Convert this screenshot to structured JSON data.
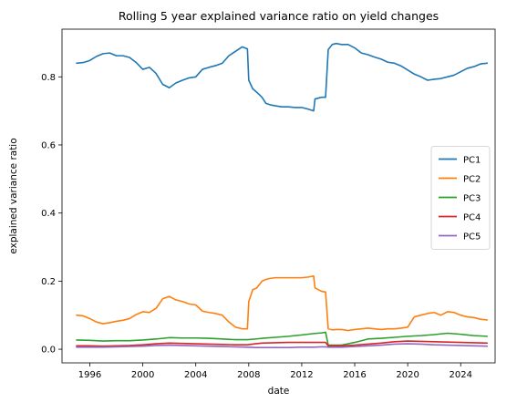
{
  "chart_data": {
    "type": "line",
    "title": "Rolling 5 year explained variance ratio on yield changes",
    "xlabel": "date",
    "ylabel": "explained variance ratio",
    "xlim": [
      1993.9,
      2026.6
    ],
    "ylim": [
      -0.04,
      0.94
    ],
    "xticks": [
      1996,
      2000,
      2004,
      2008,
      2012,
      2016,
      2020,
      2024
    ],
    "xtick_labels": [
      "1996",
      "2000",
      "2004",
      "2008",
      "2012",
      "2016",
      "2020",
      "2024"
    ],
    "yticks": [
      0.0,
      0.2,
      0.4,
      0.6,
      0.8
    ],
    "ytick_labels": [
      "0.0",
      "0.2",
      "0.4",
      "0.6",
      "0.8"
    ],
    "grid": false,
    "legend_position": "center-right",
    "series": [
      {
        "name": "PC1",
        "color": "#1f77b4",
        "x": [
          1995.0,
          1995.5,
          1996.0,
          1996.5,
          1997.0,
          1997.5,
          1998.0,
          1998.5,
          1999.0,
          1999.5,
          2000.0,
          2000.5,
          2001.0,
          2001.5,
          2002.0,
          2002.5,
          2003.0,
          2003.5,
          2004.0,
          2004.5,
          2005.0,
          2005.5,
          2006.0,
          2006.5,
          2007.0,
          2007.5,
          2007.9,
          2008.0,
          2008.3,
          2008.6,
          2009.0,
          2009.3,
          2009.6,
          2010.0,
          2010.5,
          2011.0,
          2011.5,
          2012.0,
          2012.5,
          2012.9,
          2013.0,
          2013.5,
          2013.8,
          2014.0,
          2014.3,
          2014.6,
          2015.0,
          2015.5,
          2016.0,
          2016.5,
          2017.0,
          2017.5,
          2018.0,
          2018.5,
          2019.0,
          2019.5,
          2020.0,
          2020.5,
          2021.0,
          2021.5,
          2022.0,
          2022.5,
          2023.0,
          2023.5,
          2024.0,
          2024.5,
          2025.0,
          2025.5,
          2026.0
        ],
        "y": [
          0.84,
          0.842,
          0.848,
          0.86,
          0.868,
          0.87,
          0.862,
          0.862,
          0.857,
          0.842,
          0.822,
          0.828,
          0.81,
          0.778,
          0.768,
          0.782,
          0.79,
          0.797,
          0.8,
          0.822,
          0.828,
          0.833,
          0.84,
          0.862,
          0.875,
          0.888,
          0.882,
          0.79,
          0.765,
          0.755,
          0.74,
          0.722,
          0.718,
          0.715,
          0.712,
          0.712,
          0.71,
          0.71,
          0.705,
          0.7,
          0.735,
          0.74,
          0.74,
          0.88,
          0.895,
          0.898,
          0.895,
          0.895,
          0.885,
          0.87,
          0.865,
          0.858,
          0.852,
          0.843,
          0.84,
          0.832,
          0.82,
          0.808,
          0.8,
          0.79,
          0.793,
          0.795,
          0.8,
          0.805,
          0.815,
          0.825,
          0.83,
          0.838,
          0.84
        ]
      },
      {
        "name": "PC2",
        "color": "#ff7f0e",
        "x": [
          1995.0,
          1995.5,
          1996.0,
          1996.5,
          1997.0,
          1997.5,
          1998.0,
          1998.5,
          1999.0,
          1999.5,
          2000.0,
          2000.5,
          2001.0,
          2001.5,
          2002.0,
          2002.5,
          2003.0,
          2003.5,
          2004.0,
          2004.5,
          2005.0,
          2005.5,
          2006.0,
          2006.5,
          2007.0,
          2007.5,
          2007.9,
          2008.0,
          2008.3,
          2008.6,
          2009.0,
          2009.3,
          2009.6,
          2010.0,
          2010.5,
          2011.0,
          2011.5,
          2012.0,
          2012.5,
          2012.9,
          2013.0,
          2013.5,
          2013.8,
          2014.0,
          2014.3,
          2014.6,
          2015.0,
          2015.5,
          2016.0,
          2016.5,
          2017.0,
          2017.5,
          2018.0,
          2018.5,
          2019.0,
          2019.5,
          2020.0,
          2020.5,
          2021.0,
          2021.5,
          2022.0,
          2022.5,
          2023.0,
          2023.5,
          2024.0,
          2024.5,
          2025.0,
          2025.5,
          2026.0
        ],
        "y": [
          0.1,
          0.098,
          0.09,
          0.08,
          0.075,
          0.078,
          0.082,
          0.085,
          0.09,
          0.102,
          0.11,
          0.108,
          0.12,
          0.148,
          0.155,
          0.145,
          0.14,
          0.133,
          0.13,
          0.112,
          0.108,
          0.105,
          0.1,
          0.08,
          0.065,
          0.06,
          0.06,
          0.14,
          0.175,
          0.18,
          0.2,
          0.205,
          0.208,
          0.21,
          0.21,
          0.21,
          0.21,
          0.21,
          0.212,
          0.215,
          0.18,
          0.17,
          0.168,
          0.06,
          0.057,
          0.058,
          0.058,
          0.055,
          0.058,
          0.06,
          0.062,
          0.06,
          0.058,
          0.06,
          0.06,
          0.062,
          0.065,
          0.095,
          0.1,
          0.105,
          0.108,
          0.1,
          0.11,
          0.108,
          0.1,
          0.095,
          0.093,
          0.088,
          0.086
        ]
      },
      {
        "name": "PC3",
        "color": "#2ca02c",
        "x": [
          1995.0,
          1996.0,
          1997.0,
          1998.0,
          1999.0,
          2000.0,
          2001.0,
          2002.0,
          2003.0,
          2004.0,
          2005.0,
          2006.0,
          2007.0,
          2007.9,
          2008.5,
          2009.0,
          2010.0,
          2011.0,
          2012.0,
          2012.9,
          2013.5,
          2013.8,
          2014.0,
          2015.0,
          2016.0,
          2017.0,
          2018.0,
          2019.0,
          2020.0,
          2021.0,
          2022.0,
          2023.0,
          2024.0,
          2025.0,
          2026.0
        ],
        "y": [
          0.027,
          0.026,
          0.024,
          0.025,
          0.025,
          0.027,
          0.03,
          0.034,
          0.033,
          0.033,
          0.032,
          0.03,
          0.028,
          0.028,
          0.03,
          0.032,
          0.035,
          0.038,
          0.042,
          0.046,
          0.048,
          0.05,
          0.012,
          0.012,
          0.02,
          0.03,
          0.032,
          0.035,
          0.038,
          0.04,
          0.043,
          0.047,
          0.044,
          0.04,
          0.038
        ]
      },
      {
        "name": "PC4",
        "color": "#d62728",
        "x": [
          1995.0,
          1996.0,
          1997.0,
          1998.0,
          1999.0,
          2000.0,
          2001.0,
          2002.0,
          2003.0,
          2004.0,
          2005.0,
          2006.0,
          2007.0,
          2007.9,
          2008.5,
          2009.0,
          2010.0,
          2011.0,
          2012.0,
          2012.9,
          2013.5,
          2013.8,
          2014.0,
          2015.0,
          2016.0,
          2017.0,
          2018.0,
          2019.0,
          2020.0,
          2021.0,
          2022.0,
          2023.0,
          2024.0,
          2025.0,
          2026.0
        ],
        "y": [
          0.01,
          0.01,
          0.009,
          0.01,
          0.011,
          0.013,
          0.016,
          0.018,
          0.017,
          0.016,
          0.015,
          0.014,
          0.013,
          0.013,
          0.016,
          0.018,
          0.019,
          0.02,
          0.02,
          0.02,
          0.02,
          0.02,
          0.01,
          0.01,
          0.012,
          0.015,
          0.018,
          0.022,
          0.024,
          0.023,
          0.022,
          0.021,
          0.02,
          0.019,
          0.018
        ]
      },
      {
        "name": "PC5",
        "color": "#9467bd",
        "x": [
          1995.0,
          1996.0,
          1997.0,
          1998.0,
          1999.0,
          2000.0,
          2001.0,
          2002.0,
          2003.0,
          2004.0,
          2005.0,
          2006.0,
          2007.0,
          2007.9,
          2008.5,
          2009.0,
          2010.0,
          2011.0,
          2012.0,
          2012.9,
          2013.5,
          2013.8,
          2014.0,
          2015.0,
          2016.0,
          2017.0,
          2018.0,
          2019.0,
          2020.0,
          2021.0,
          2022.0,
          2023.0,
          2024.0,
          2025.0,
          2026.0
        ],
        "y": [
          0.006,
          0.006,
          0.006,
          0.007,
          0.008,
          0.009,
          0.011,
          0.012,
          0.011,
          0.01,
          0.009,
          0.008,
          0.007,
          0.006,
          0.005,
          0.005,
          0.005,
          0.005,
          0.006,
          0.006,
          0.007,
          0.007,
          0.006,
          0.006,
          0.008,
          0.01,
          0.012,
          0.015,
          0.016,
          0.015,
          0.013,
          0.012,
          0.011,
          0.01,
          0.009
        ]
      }
    ]
  }
}
